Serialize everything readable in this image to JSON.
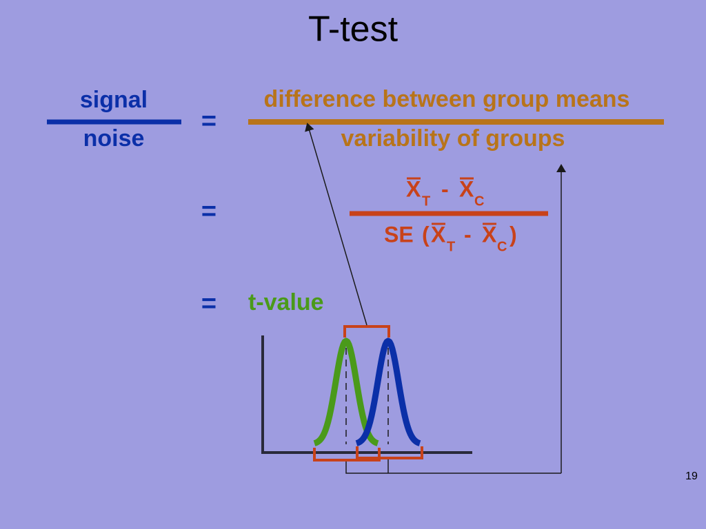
{
  "title": "T-test",
  "equation": {
    "signal": "signal",
    "noise": "noise",
    "equals": "=",
    "numerator": "difference between group means",
    "denominator": "variability of groups"
  },
  "formula": {
    "symbol": "X",
    "treatment": "T",
    "control": "C",
    "minus": "-",
    "se": "SE",
    "open": "(",
    "close": ")"
  },
  "result": "t-value",
  "page_number": 19
}
